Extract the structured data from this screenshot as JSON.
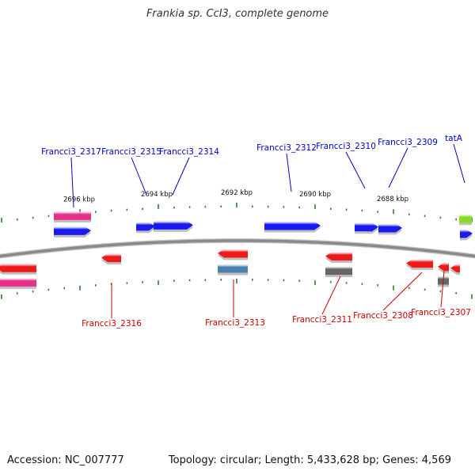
{
  "title": "Frankia sp. CcI3, complete genome",
  "footer": {
    "accession": "Accession: NC_007777",
    "stats": "Topology: circular; Length: 5,433,628 bp; Genes: 4,569"
  },
  "colors": {
    "backbone": "#8a8a8a",
    "tick": "#2e7d2e",
    "forward_label": "#0000cc",
    "reverse_label": "#cc0000",
    "blue": "#1a1aee",
    "red": "#ee1a1a",
    "pink": "#e8308a",
    "gray": "#666666",
    "steelblue": "#4a7fb0",
    "green": "#88dd22"
  },
  "scale_labels": [
    "2696 kbp",
    "2694 kbp",
    "2692 kbp",
    "2690 kbp",
    "2688 kbp"
  ],
  "forward_labels": [
    "Francci3_2317",
    "Francci3_2315",
    "Francci3_2314",
    "Francci3_2312",
    "Francci3_2310",
    "Francci3_2309",
    "tatA"
  ],
  "reverse_labels": [
    "Francci3_2316",
    "Francci3_2313",
    "Francci3_2311",
    "Francci3_2308",
    "Francci3_2307"
  ]
}
